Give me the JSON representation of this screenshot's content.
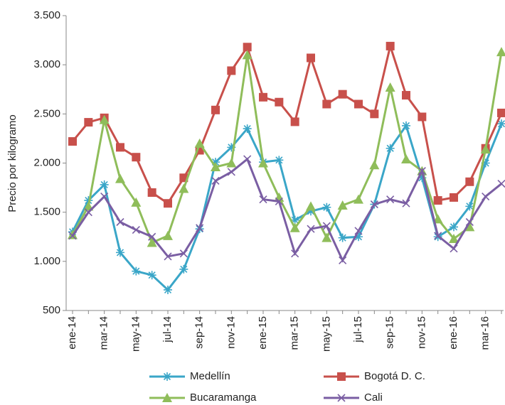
{
  "chart_data": {
    "type": "line",
    "y_label": "Precio por kilogramo",
    "categories": [
      "ene-14",
      null,
      "mar-14",
      null,
      "may-14",
      null,
      "jul-14",
      null,
      "sep-14",
      null,
      "nov-14",
      null,
      "ene-15",
      null,
      "mar-15",
      null,
      "may-15",
      null,
      "jul-15",
      null,
      "sep-15",
      null,
      "nov-15",
      null,
      "ene-16",
      null,
      "mar-16",
      null
    ],
    "series": [
      {
        "name": "Medellín",
        "color": "#3aa6c8",
        "marker": "asterisk",
        "values": [
          1300,
          1620,
          1780,
          1090,
          900,
          860,
          710,
          920,
          1330,
          2010,
          2160,
          2350,
          2010,
          2030,
          1420,
          1510,
          1550,
          1240,
          1250,
          1580,
          2150,
          2380,
          1850,
          1250,
          1350,
          1560,
          2000,
          2400
        ]
      },
      {
        "name": "Bogotá D. C.",
        "color": "#c8504b",
        "marker": "square",
        "values": [
          2220,
          2415,
          2460,
          2160,
          2060,
          1700,
          1590,
          1850,
          2130,
          2540,
          2940,
          3180,
          2670,
          2620,
          2420,
          3070,
          2600,
          2700,
          2600,
          2500,
          3190,
          2690,
          2470,
          1620,
          1650,
          1810,
          2150,
          2510
        ]
      },
      {
        "name": "Bucaramanga",
        "color": "#8fbd5a",
        "marker": "triangle",
        "values": [
          1270,
          1560,
          2440,
          1840,
          1600,
          1190,
          1260,
          1740,
          2200,
          1960,
          2000,
          3100,
          2000,
          1650,
          1340,
          1560,
          1240,
          1570,
          1630,
          1980,
          2770,
          2040,
          1920,
          1430,
          1230,
          1350,
          2140,
          3130
        ]
      },
      {
        "name": "Cali",
        "color": "#7a5ea3",
        "marker": "x",
        "values": [
          1260,
          1500,
          1660,
          1400,
          1320,
          1250,
          1050,
          1080,
          1340,
          1820,
          1910,
          2040,
          1630,
          1610,
          1080,
          1330,
          1360,
          1010,
          1310,
          1580,
          1630,
          1590,
          1920,
          1260,
          1130,
          1400,
          1660,
          1790
        ]
      }
    ],
    "ylim": [
      500,
      3500
    ],
    "yticks": [
      {
        "value": 500,
        "label": "500"
      },
      {
        "value": 1000,
        "label": "1.000"
      },
      {
        "value": 1500,
        "label": "1.500"
      },
      {
        "value": 2000,
        "label": "2.000"
      },
      {
        "value": 2500,
        "label": "2.500"
      },
      {
        "value": 3000,
        "label": "3.000"
      },
      {
        "value": 3500,
        "label": "3.500"
      }
    ],
    "grid": false,
    "legend": "bottom"
  }
}
